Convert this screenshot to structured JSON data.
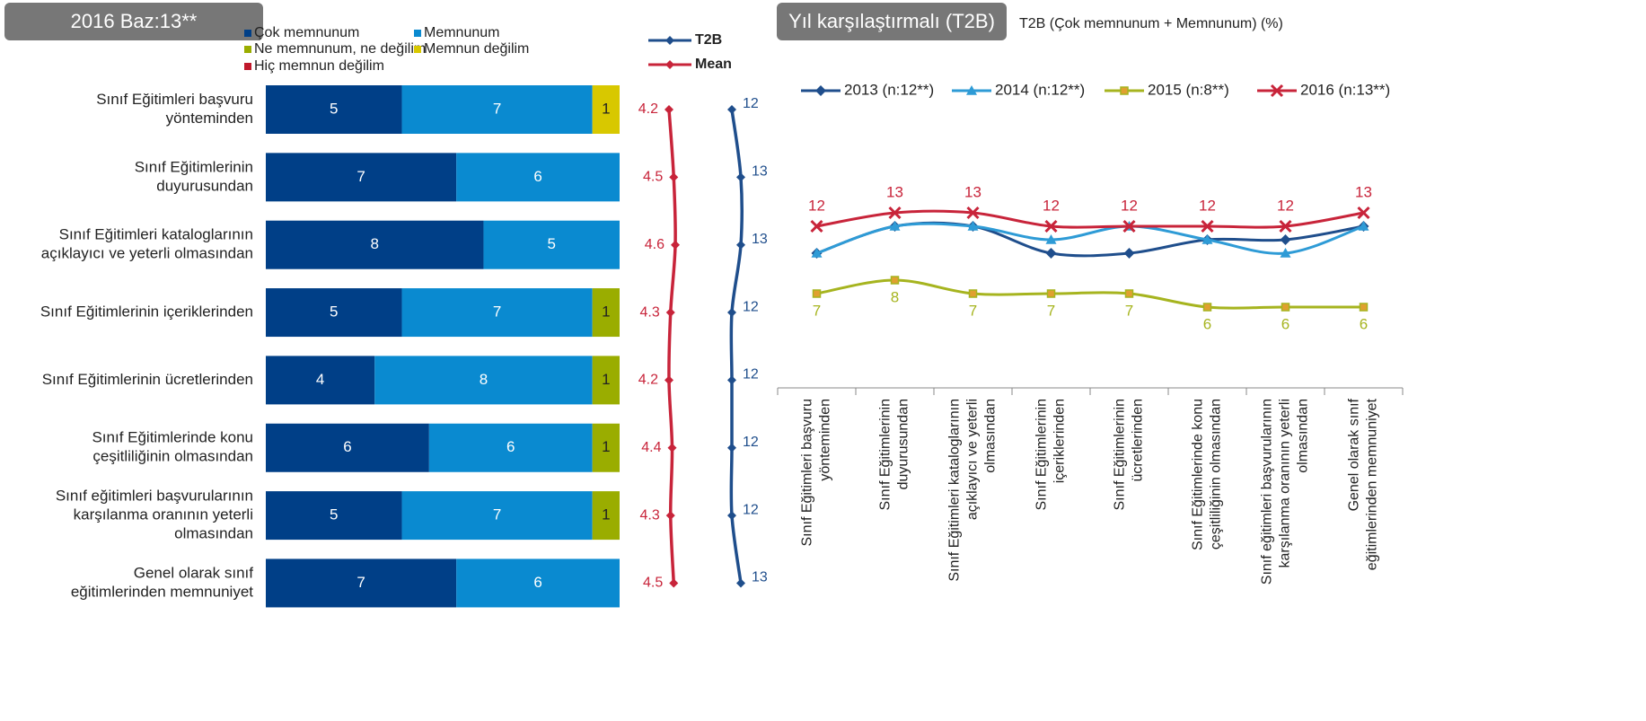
{
  "chart_data": [
    {
      "type": "stacked_bar_horizontal",
      "title": "2016 Baz:13**",
      "categories": [
        [
          "Sınıf Eğitimleri başvuru",
          "yönteminden"
        ],
        [
          "Sınıf Eğitimlerinin",
          "duyurusundan"
        ],
        [
          "Sınıf Eğitimleri kataloglarının",
          "açıklayıcı ve yeterli olmasından"
        ],
        [
          "Sınıf Eğitimlerinin içeriklerinden"
        ],
        [
          "Sınıf Eğitimlerinin ücretlerinden"
        ],
        [
          "Sınıf Eğitimlerinde konu",
          "çeşitliliğinin olmasından"
        ],
        [
          "Sınıf eğitimleri başvurularının",
          "karşılanma oranının yeterli",
          "olmasından"
        ],
        [
          "Genel olarak sınıf",
          "eğitimlerinden memnuniyet"
        ]
      ],
      "xlim": [
        0,
        13
      ],
      "series": [
        {
          "name": "Çok memnunum",
          "color": "#003f87",
          "values": [
            5,
            7,
            8,
            5,
            4,
            6,
            5,
            7
          ]
        },
        {
          "name": "Memnunum",
          "color": "#0a8ad0",
          "values": [
            7,
            6,
            5,
            7,
            8,
            6,
            7,
            6
          ]
        },
        {
          "name": "Ne memnunum, ne değilim",
          "color": "#9aad00",
          "values": [
            null,
            null,
            null,
            1,
            1,
            1,
            1,
            null
          ]
        },
        {
          "name": "Memnun değilim",
          "color": "#d8c800",
          "values": [
            1,
            null,
            null,
            null,
            null,
            null,
            null,
            null
          ]
        },
        {
          "name": "Hiç memnun değilim",
          "color": "#c0182b",
          "values": [
            null,
            null,
            null,
            null,
            null,
            null,
            null,
            null
          ]
        }
      ],
      "lines": [
        {
          "name": "T2B",
          "color": "#1f4e8c",
          "values": [
            12,
            13,
            13,
            12,
            12,
            12,
            12,
            13
          ],
          "xlim": [
            0,
            13
          ]
        },
        {
          "name": "Mean",
          "color": "#c8243a",
          "values": [
            4.2,
            4.5,
            4.6,
            4.3,
            4.2,
            4.4,
            4.3,
            4.5
          ],
          "xlim": [
            0,
            10
          ]
        }
      ]
    },
    {
      "type": "line",
      "title": "Yıl karşılaştırmalı (T2B)",
      "subtitle": "T2B (Çok memnunum  + Memnunum) (%)",
      "categories": [
        [
          "Sınıf Eğitimleri başvuru",
          "yönteminden"
        ],
        [
          "Sınıf Eğitimlerinin",
          "duyurusundan"
        ],
        [
          "Sınıf Eğitimleri kataloglarının",
          "açıklayıcı ve yeterli",
          "olmasından"
        ],
        [
          "Sınıf Eğitimlerinin",
          "içeriklerinden"
        ],
        [
          "Sınıf Eğitimlerinin",
          "ücretlerinden"
        ],
        [
          "Sınıf Eğitimlerinde konu",
          "çeşitliliğinin olmasından"
        ],
        [
          "Sınıf eğitimleri başvurularının",
          "karşılanma oranının yeterli",
          "olmasından"
        ],
        [
          "Genel olarak sınıf",
          "eğitimlerinden memnuniyet"
        ]
      ],
      "ylim": [
        0,
        20
      ],
      "series": [
        {
          "name": "2013 (n:12**)",
          "color": "#1f4e8c",
          "marker": "diamond",
          "show_values": false,
          "values": [
            10,
            12,
            12,
            10,
            10,
            11,
            11,
            12
          ]
        },
        {
          "name": "2014 (n:12**)",
          "color": "#2e9bd6",
          "marker": "triangle",
          "show_values": false,
          "values": [
            10,
            12,
            12,
            11,
            12,
            11,
            10,
            12
          ]
        },
        {
          "name": "2015 (n:8**)",
          "color": "#a6b41f",
          "marker": "square",
          "show_values": true,
          "values": [
            7,
            8,
            7,
            7,
            7,
            6,
            6,
            6
          ]
        },
        {
          "name": "2016 (n:13**)",
          "color": "#c8243a",
          "marker": "x",
          "show_values": true,
          "values": [
            12,
            13,
            13,
            12,
            12,
            12,
            12,
            13
          ]
        }
      ]
    }
  ]
}
